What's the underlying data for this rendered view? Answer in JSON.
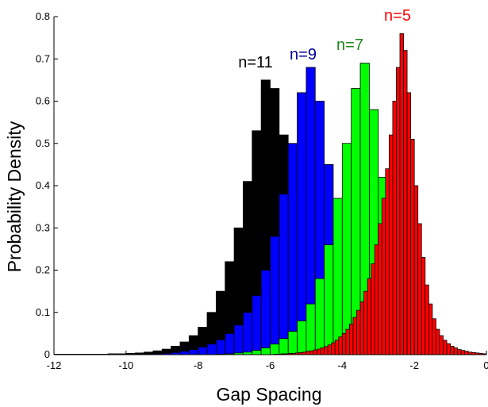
{
  "chart_data": {
    "type": "bar",
    "title": "",
    "xlabel": "Gap Spacing",
    "ylabel": "Probability Density",
    "xlim": [
      -12,
      0
    ],
    "ylim": [
      0,
      0.8
    ],
    "xticks": [
      -12,
      -10,
      -8,
      -6,
      -4,
      -2,
      0
    ],
    "yticks": [
      0,
      0.1,
      0.2,
      0.3,
      0.4,
      0.5,
      0.6,
      0.7,
      0.8
    ],
    "xtick_labels": [
      "-12",
      "-10",
      "-8",
      "-6",
      "-4",
      "-2",
      "0"
    ],
    "ytick_labels": [
      "0",
      "0.1",
      "0.2",
      "0.3",
      "0.4",
      "0.5",
      "0.6",
      "0.7",
      "0.8"
    ],
    "grid": false,
    "series": [
      {
        "name": "n=11",
        "color": "#000000",
        "bin_width": 0.25,
        "x": [
          -11.875,
          -11.625,
          -11.375,
          -11.125,
          -10.875,
          -10.625,
          -10.375,
          -10.125,
          -9.875,
          -9.625,
          -9.375,
          -9.125,
          -8.875,
          -8.625,
          -8.375,
          -8.125,
          -7.875,
          -7.625,
          -7.375,
          -7.125,
          -6.875,
          -6.625,
          -6.375,
          -6.125,
          -5.875,
          -5.625,
          -5.375,
          -5.125,
          -4.875,
          -4.625,
          -4.375,
          -4.125,
          -3.875,
          -3.625,
          -3.375,
          -3.125
        ],
        "values": [
          0.001,
          0.001,
          0.001,
          0.001,
          0.001,
          0.001,
          0.002,
          0.002,
          0.003,
          0.004,
          0.006,
          0.009,
          0.013,
          0.02,
          0.03,
          0.045,
          0.065,
          0.1,
          0.15,
          0.22,
          0.3,
          0.41,
          0.53,
          0.65,
          0.63,
          0.52,
          0.38,
          0.26,
          0.17,
          0.1,
          0.06,
          0.035,
          0.02,
          0.01,
          0.005,
          0.002
        ]
      },
      {
        "name": "n=9",
        "color": "#0000ff",
        "bin_width": 0.25,
        "x": [
          -9.375,
          -9.125,
          -8.875,
          -8.625,
          -8.375,
          -8.125,
          -7.875,
          -7.625,
          -7.375,
          -7.125,
          -6.875,
          -6.625,
          -6.375,
          -6.125,
          -5.875,
          -5.625,
          -5.375,
          -5.125,
          -4.875,
          -4.625,
          -4.375,
          -4.125,
          -3.875,
          -3.625,
          -3.375,
          -3.125,
          -2.875,
          -2.625
        ],
        "values": [
          0.001,
          0.002,
          0.003,
          0.005,
          0.008,
          0.012,
          0.018,
          0.025,
          0.035,
          0.05,
          0.07,
          0.1,
          0.14,
          0.2,
          0.28,
          0.38,
          0.5,
          0.62,
          0.68,
          0.6,
          0.45,
          0.3,
          0.18,
          0.1,
          0.05,
          0.025,
          0.012,
          0.005
        ]
      },
      {
        "name": "n=7",
        "color": "#00ff00",
        "bin_width": 0.25,
        "x": [
          -7.375,
          -7.125,
          -6.875,
          -6.625,
          -6.375,
          -6.125,
          -5.875,
          -5.625,
          -5.375,
          -5.125,
          -4.875,
          -4.625,
          -4.375,
          -4.125,
          -3.875,
          -3.625,
          -3.375,
          -3.125,
          -2.875,
          -2.625,
          -2.375,
          -2.125,
          -1.875,
          -1.625,
          -1.375,
          -1.125
        ],
        "values": [
          0.001,
          0.002,
          0.004,
          0.006,
          0.01,
          0.016,
          0.025,
          0.038,
          0.055,
          0.08,
          0.12,
          0.18,
          0.26,
          0.37,
          0.5,
          0.63,
          0.69,
          0.58,
          0.42,
          0.27,
          0.15,
          0.08,
          0.04,
          0.02,
          0.008,
          0.003
        ]
      },
      {
        "name": "n=5",
        "color": "#ff0000",
        "bin_width": 0.1,
        "x": [
          -5.85,
          -5.75,
          -5.65,
          -5.55,
          -5.45,
          -5.35,
          -5.25,
          -5.15,
          -5.05,
          -4.95,
          -4.85,
          -4.75,
          -4.65,
          -4.55,
          -4.45,
          -4.35,
          -4.25,
          -4.15,
          -4.05,
          -3.95,
          -3.85,
          -3.75,
          -3.65,
          -3.55,
          -3.45,
          -3.35,
          -3.25,
          -3.15,
          -3.05,
          -2.95,
          -2.85,
          -2.75,
          -2.65,
          -2.55,
          -2.45,
          -2.35,
          -2.25,
          -2.15,
          -2.05,
          -1.95,
          -1.85,
          -1.75,
          -1.65,
          -1.55,
          -1.45,
          -1.35,
          -1.25,
          -1.15,
          -1.05,
          -0.95,
          -0.85,
          -0.75,
          -0.65,
          -0.55,
          -0.45,
          -0.35,
          -0.25,
          -0.15,
          -0.05
        ],
        "values": [
          0.001,
          0.001,
          0.002,
          0.002,
          0.003,
          0.003,
          0.004,
          0.005,
          0.006,
          0.008,
          0.009,
          0.011,
          0.013,
          0.016,
          0.019,
          0.023,
          0.028,
          0.034,
          0.042,
          0.05,
          0.06,
          0.072,
          0.088,
          0.105,
          0.125,
          0.15,
          0.18,
          0.215,
          0.26,
          0.31,
          0.37,
          0.44,
          0.52,
          0.6,
          0.68,
          0.76,
          0.72,
          0.62,
          0.51,
          0.4,
          0.31,
          0.23,
          0.165,
          0.12,
          0.085,
          0.06,
          0.045,
          0.034,
          0.026,
          0.02,
          0.016,
          0.012,
          0.01,
          0.008,
          0.006,
          0.005,
          0.004,
          0.003,
          0.002
        ]
      }
    ]
  }
}
